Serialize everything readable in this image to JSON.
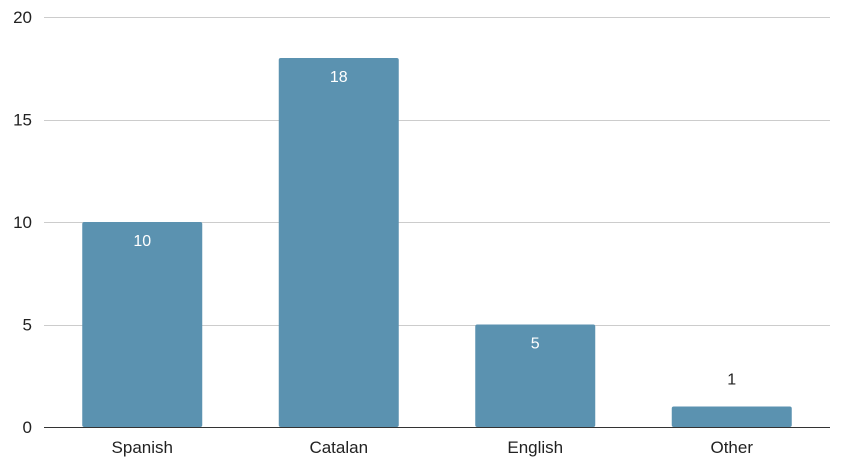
{
  "chart_data": {
    "type": "bar",
    "categories": [
      "Spanish",
      "Catalan",
      "English",
      "Other"
    ],
    "values": [
      10,
      18,
      5,
      1
    ],
    "data_labels": [
      "10",
      "18",
      "5",
      "1"
    ],
    "title": "",
    "xlabel": "",
    "ylabel": "",
    "ylim": [
      0,
      20
    ],
    "yticks": [
      0,
      5,
      10,
      15,
      20
    ],
    "ytick_labels": [
      "0",
      "5",
      "10",
      "15",
      "20"
    ],
    "grid": true,
    "legend": "none",
    "bar_color": "#5b92b0",
    "inside_label_color": "#ffffff",
    "outside_label_color": "#222222"
  }
}
